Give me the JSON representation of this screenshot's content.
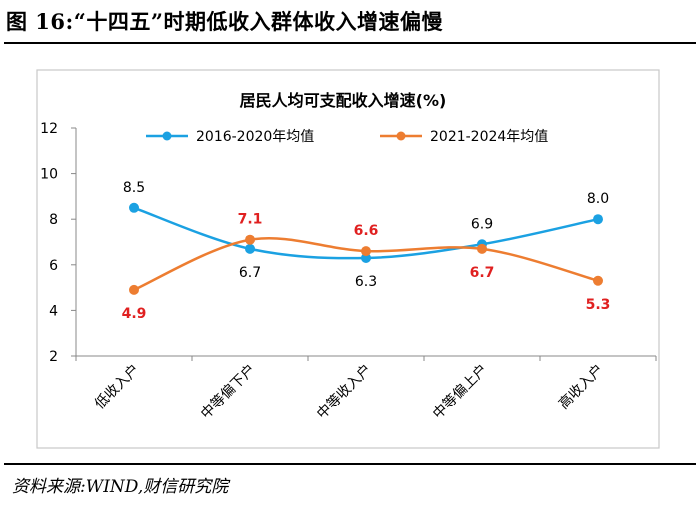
{
  "figure_title": "图 16:“十四五”时期低收入群体收入增速偏慢",
  "source": "资料来源:WIND,财信研究院",
  "chart_data": {
    "type": "line",
    "title": "居民人均可支配收入增速(%)",
    "categories": [
      "低收入户",
      "中等偏下户",
      "中等收入户",
      "中等偏上户",
      "高收入户"
    ],
    "series": [
      {
        "name": "2016-2020年均值",
        "values": [
          8.5,
          6.7,
          6.3,
          6.9,
          8.0
        ],
        "color": "#1ba1e2",
        "label_color": "#000000"
      },
      {
        "name": "2021-2024年均值",
        "values": [
          4.9,
          7.1,
          6.6,
          6.7,
          5.3
        ],
        "color": "#ed7d31",
        "label_color": "#e02020"
      }
    ],
    "ylim": [
      2,
      12
    ],
    "yticks": [
      2,
      4,
      6,
      8,
      10,
      12
    ],
    "xlabel": "",
    "ylabel": "",
    "grid": false,
    "legend": "top"
  }
}
